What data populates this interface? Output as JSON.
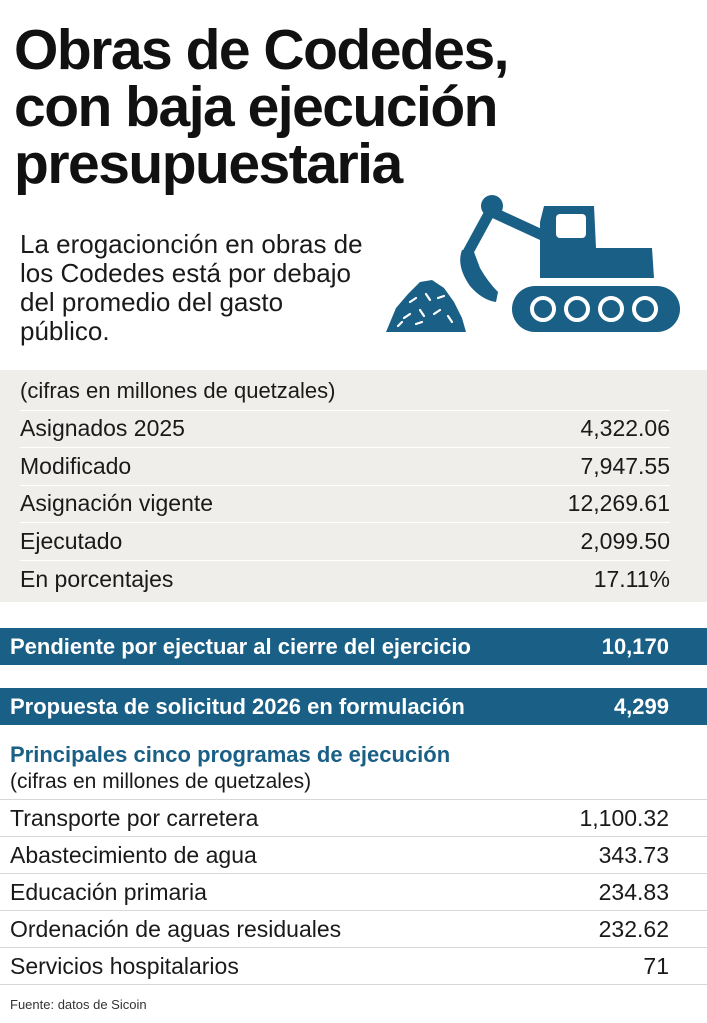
{
  "title": {
    "line1": "Obras de Codedes,",
    "line2": "con baja ejecución",
    "line3": "presupuestaria"
  },
  "subtitle": "La erogacionción en obras de los Codedes está por debajo del promedio del gasto público.",
  "illustration": {
    "icons": [
      "excavator-icon",
      "rubble-pile-icon"
    ],
    "color": "#1a5f85"
  },
  "budget_table": {
    "header": "(cifras en millones de quetzales)",
    "rows": [
      {
        "label": "Asignados 2025",
        "value": "4,322.06"
      },
      {
        "label": "Modificado",
        "value": "7,947.55"
      },
      {
        "label": "Asignación vigente",
        "value": "12,269.61"
      },
      {
        "label": "Ejecutado",
        "value": "2,099.50"
      },
      {
        "label": "En porcentajes",
        "value": "17.11%"
      }
    ]
  },
  "highlights": [
    {
      "label": "Pendiente por ejectuar al cierre del ejercicio",
      "value": "10,170"
    },
    {
      "label": "Propuesta de solicitud 2026 en formulación",
      "value": "4,299"
    }
  ],
  "programs": {
    "title": "Principales cinco programas de ejecución",
    "subtitle": "(cifras en millones de quetzales)",
    "rows": [
      {
        "label": "Transporte por carretera",
        "value": "1,100.32"
      },
      {
        "label": "Abastecimiento de agua",
        "value": "343.73"
      },
      {
        "label": "Educación primaria",
        "value": "234.83"
      },
      {
        "label": "Ordenación de aguas residuales",
        "value": "232.62"
      },
      {
        "label": "Servicios hospitalarios",
        "value": "71"
      }
    ]
  },
  "source": "Fuente: datos de Sicoin",
  "colors": {
    "accent": "#1a5f85",
    "panel": "#efeeea"
  }
}
